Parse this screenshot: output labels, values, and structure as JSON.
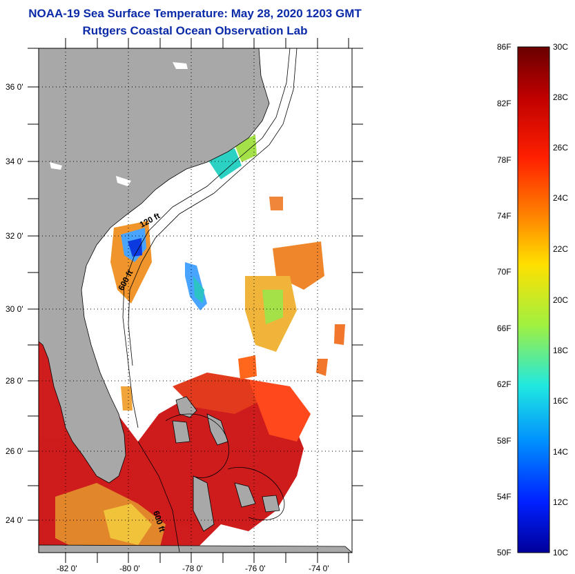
{
  "header": {
    "title": "NOAA-19 Sea Surface Temperature:  May 28, 2020 1203 GMT",
    "subtitle": "Rutgers Coastal Ocean Observation Lab"
  },
  "map": {
    "lat_labels": [
      "36 0'",
      "34 0'",
      "32 0'",
      "30 0'",
      "28 0'",
      "26 0'",
      "24 0'"
    ],
    "lon_labels": [
      "-82 0'",
      "-80 0'",
      "-78 0'",
      "-76 0'",
      "-74 0'"
    ],
    "contour_labels": [
      "120 ft",
      "600 ft",
      "600 ft"
    ],
    "lat_range": [
      23,
      37
    ],
    "lon_range": [
      -83,
      -73
    ],
    "land_color": "#a8a8a8",
    "ocean_nodata_color": "#ffffff"
  },
  "colorbar": {
    "fahrenheit_labels": [
      "86F",
      "82F",
      "78F",
      "74F",
      "70F",
      "66F",
      "62F",
      "58F",
      "54F",
      "50F"
    ],
    "celsius_labels": [
      "30C",
      "28C",
      "26C",
      "24C",
      "22C",
      "20C",
      "18C",
      "16C",
      "14C",
      "12C",
      "10C"
    ],
    "range_c": [
      10,
      30
    ],
    "colors": [
      "#7a0000",
      "#d80000",
      "#ff3000",
      "#ff9000",
      "#ffe000",
      "#a0f040",
      "#20e0e0",
      "#0090ff",
      "#0030ff",
      "#0000a0"
    ]
  }
}
